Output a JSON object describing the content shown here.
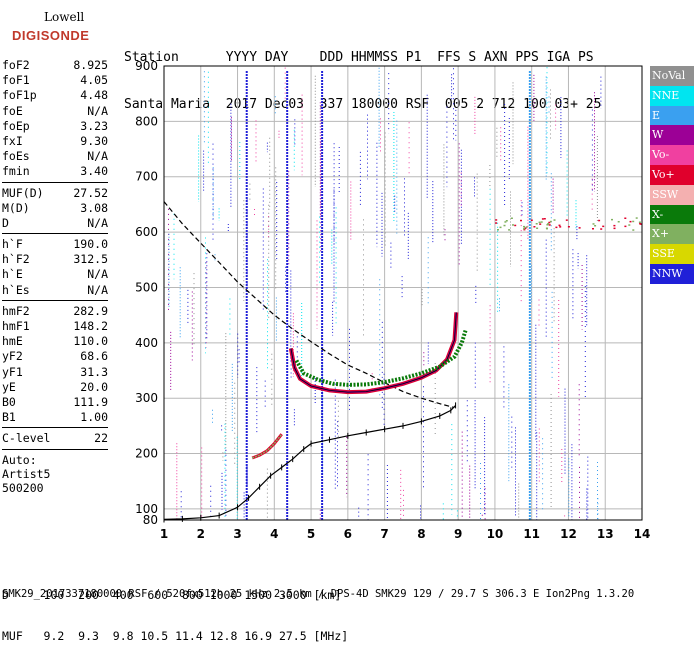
{
  "logo": {
    "top": "Lowell",
    "bottom": "DIGISONDE"
  },
  "header": {
    "line1": "Station      YYYY DAY    DDD HHMMSS P1  FFS S AXN PPS IGA PS",
    "line2": "Santa Maria  2017 Dec03  337 180000 RSF  005 2 712 100 03+ 25"
  },
  "params_group1": [
    {
      "name": "foF2",
      "value": "8.925"
    },
    {
      "name": "foF1",
      "value": "4.05"
    },
    {
      "name": "foF1p",
      "value": "4.48"
    },
    {
      "name": "foE",
      "value": "N/A"
    },
    {
      "name": "foEp",
      "value": "3.23"
    },
    {
      "name": "fxI",
      "value": "9.30"
    },
    {
      "name": "foEs",
      "value": "N/A"
    },
    {
      "name": "fmin",
      "value": "3.40"
    }
  ],
  "params_group2": [
    {
      "name": "MUF(D)",
      "value": "27.52"
    },
    {
      "name": "M(D)",
      "value": "3.08"
    },
    {
      "name": "D",
      "value": "N/A"
    }
  ],
  "params_group3": [
    {
      "name": "h`F",
      "value": "190.0"
    },
    {
      "name": "h`F2",
      "value": "312.5"
    },
    {
      "name": "h`E",
      "value": "N/A"
    },
    {
      "name": "h`Es",
      "value": "N/A"
    }
  ],
  "params_group4": [
    {
      "name": "hmF2",
      "value": "282.9"
    },
    {
      "name": "hmF1",
      "value": "148.2"
    },
    {
      "name": "hmE",
      "value": "110.0"
    },
    {
      "name": "yF2",
      "value": "68.6"
    },
    {
      "name": "yF1",
      "value": "31.3"
    },
    {
      "name": "yE",
      "value": "20.0"
    },
    {
      "name": "B0",
      "value": "111.9"
    },
    {
      "name": "B1",
      "value": "1.00"
    }
  ],
  "params_group5": [
    {
      "name": "C-level",
      "value": "22"
    }
  ],
  "auto": [
    "Auto:",
    "Artist5",
    "500200"
  ],
  "legend": [
    {
      "label": "NoVal",
      "color": "#909090"
    },
    {
      "label": "NNE",
      "color": "#00e5f0"
    },
    {
      "label": "E",
      "color": "#3aa0f0"
    },
    {
      "label": "W",
      "color": "#9c0096"
    },
    {
      "label": "Vo-",
      "color": "#f040a0"
    },
    {
      "label": "Vo+",
      "color": "#e0002c"
    },
    {
      "label": "SSW",
      "color": "#f4b0b0"
    },
    {
      "label": "X-",
      "color": "#0a7a0a"
    },
    {
      "label": "X+",
      "color": "#80b060"
    },
    {
      "label": "SSE",
      "color": "#d8d800"
    },
    {
      "label": "NNW",
      "color": "#2020d8"
    }
  ],
  "table": {
    "line1": "D     100  200  400  600  800 1000 1500 3000 [km]",
    "line2": "MUF   9.2  9.3  9.8 10.5 11.4 12.8 16.9 27.5 [MHz]"
  },
  "footer": "SMK29_2017337180000.RSF / 520fx512h 25 kHz 2.5 km / DPS-4D SMK29 129 / 29.7 S 306.3 E Ion2Png 1.3.20",
  "chart_data": {
    "type": "scatter",
    "title": "",
    "xlabel": "",
    "ylabel": "",
    "xlim": [
      1,
      14
    ],
    "ylim": [
      80,
      900
    ],
    "xticks": [
      1,
      2,
      3,
      4,
      5,
      6,
      7,
      8,
      9,
      10,
      11,
      12,
      13,
      14
    ],
    "yticks": [
      100,
      200,
      300,
      400,
      500,
      600,
      700,
      800,
      900
    ],
    "grid": true,
    "series": [
      {
        "kind": "profile_dashed",
        "x": [
          1.0,
          1.5,
          2.0,
          2.5,
          3.0,
          3.5,
          4.0,
          4.5,
          5.0,
          5.5,
          6.0,
          6.5,
          7.0,
          7.5,
          8.0,
          8.5,
          8.9
        ],
        "y": [
          655,
          615,
          580,
          545,
          510,
          480,
          450,
          425,
          402,
          380,
          360,
          345,
          328,
          312,
          300,
          290,
          283
        ]
      },
      {
        "kind": "profile_ticked",
        "x": [
          1.0,
          1.5,
          2.0,
          2.5,
          3.0,
          3.3,
          3.6,
          3.9,
          4.2,
          4.5,
          4.8,
          5.0,
          5.5,
          6.0,
          6.5,
          7.0,
          7.5,
          8.0,
          8.5,
          8.8,
          8.93
        ],
        "y": [
          81,
          82,
          84,
          88,
          103,
          120,
          140,
          160,
          175,
          190,
          208,
          218,
          225,
          232,
          238,
          244,
          250,
          258,
          268,
          278,
          287
        ]
      },
      {
        "kind": "o_trace",
        "x": [
          4.45,
          4.55,
          4.7,
          5.0,
          5.5,
          6.0,
          6.5,
          7.0,
          7.5,
          8.0,
          8.4,
          8.7,
          8.9,
          8.95
        ],
        "y": [
          390,
          355,
          335,
          322,
          314,
          311,
          312,
          318,
          326,
          337,
          350,
          370,
          405,
          455
        ]
      },
      {
        "kind": "x_trace",
        "x": [
          4.6,
          4.8,
          5.2,
          5.6,
          6.0,
          6.5,
          7.0,
          7.5,
          8.0,
          8.5,
          8.9,
          9.1,
          9.2
        ],
        "y": [
          368,
          345,
          333,
          326,
          324,
          325,
          329,
          336,
          345,
          357,
          375,
          400,
          422
        ]
      },
      {
        "kind": "e_trace",
        "x": [
          3.4,
          3.6,
          3.8,
          4.0,
          4.2
        ],
        "y": [
          192,
          197,
          205,
          218,
          235
        ]
      }
    ]
  }
}
